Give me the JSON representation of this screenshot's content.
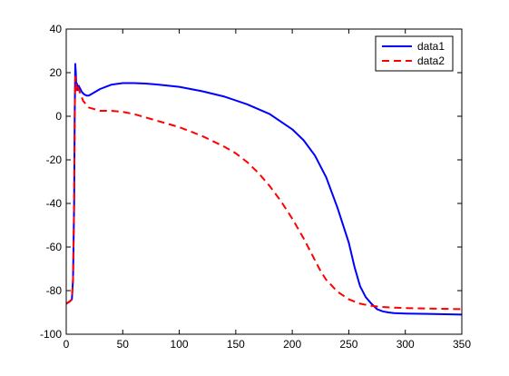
{
  "chart_data": {
    "type": "line",
    "title": "",
    "xlabel": "",
    "ylabel": "",
    "xlim": [
      0,
      350
    ],
    "ylim": [
      -100,
      40
    ],
    "xticks": [
      0,
      50,
      100,
      150,
      200,
      250,
      300,
      350
    ],
    "yticks": [
      -100,
      -80,
      -60,
      -40,
      -20,
      0,
      20,
      40
    ],
    "grid": false,
    "legend": "top-right",
    "series": [
      {
        "name": "data1",
        "color": "#0000ff",
        "style": "solid",
        "x": [
          0,
          3,
          5,
          6,
          7,
          7.5,
          8,
          8.5,
          9,
          9.5,
          10,
          11,
          12,
          14,
          16,
          18,
          20,
          25,
          30,
          40,
          50,
          60,
          70,
          80,
          100,
          120,
          140,
          160,
          180,
          200,
          210,
          220,
          230,
          240,
          250,
          255,
          260,
          265,
          270,
          275,
          280,
          285,
          290,
          300,
          320,
          350
        ],
        "y": [
          -86,
          -85,
          -84,
          -75,
          -40,
          0,
          24,
          20,
          12,
          15,
          12,
          14,
          13,
          11,
          10,
          9.5,
          9.5,
          11,
          12.5,
          14.5,
          15.2,
          15.2,
          15,
          14.6,
          13.5,
          11.5,
          9,
          5.5,
          1,
          -6,
          -11,
          -18,
          -28,
          -42,
          -58,
          -69,
          -78,
          -83,
          -86,
          -88.5,
          -89.5,
          -90,
          -90.3,
          -90.5,
          -90.7,
          -91
        ]
      },
      {
        "name": "data2",
        "color": "#ff0000",
        "style": "dashed",
        "x": [
          0,
          3,
          5,
          6,
          7,
          7.5,
          8,
          8.5,
          9,
          10,
          12,
          15,
          20,
          30,
          40,
          50,
          60,
          70,
          80,
          100,
          120,
          140,
          150,
          160,
          170,
          180,
          190,
          200,
          210,
          220,
          225,
          230,
          240,
          250,
          260,
          270,
          280,
          290,
          300,
          320,
          350
        ],
        "y": [
          -86,
          -85,
          -84,
          -75,
          -40,
          0,
          18,
          16,
          12,
          14,
          11,
          7,
          4,
          2.5,
          2.5,
          2,
          1,
          -0.5,
          -2,
          -5,
          -9,
          -14,
          -17,
          -21,
          -26,
          -32,
          -39,
          -47,
          -56,
          -66,
          -71,
          -75,
          -80.5,
          -84,
          -86,
          -87,
          -87.5,
          -87.8,
          -88,
          -88.2,
          -88.5
        ]
      }
    ]
  }
}
